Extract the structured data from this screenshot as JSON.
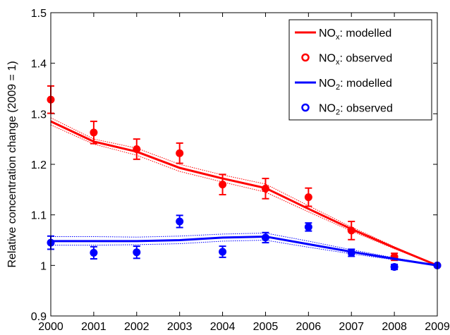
{
  "chart_data": {
    "type": "line",
    "y_label": "Relative concentration change (2009 = 1)",
    "x": [
      2000,
      2001,
      2002,
      2003,
      2004,
      2005,
      2006,
      2007,
      2008,
      2009
    ],
    "xlim": [
      2000,
      2009
    ],
    "xticks": [
      2000,
      2001,
      2002,
      2003,
      2004,
      2005,
      2006,
      2007,
      2008,
      2009
    ],
    "ylim": [
      0.9,
      1.5
    ],
    "yticks": [
      0.9,
      1,
      1.1,
      1.2,
      1.3,
      1.4,
      1.5
    ],
    "legend": "upper right",
    "series": [
      {
        "name": [
          "NO",
          "x",
          ": modelled"
        ],
        "color": "#ff0000",
        "style": "line",
        "values": [
          1.285,
          1.245,
          1.225,
          1.193,
          1.172,
          1.153,
          1.112,
          1.072,
          1.035,
          1.0
        ],
        "upper": [
          1.292,
          1.25,
          1.232,
          1.2,
          1.179,
          1.161,
          1.118,
          1.076,
          1.037,
          1.0
        ],
        "lower": [
          1.278,
          1.24,
          1.218,
          1.186,
          1.165,
          1.145,
          1.106,
          1.068,
          1.033,
          1.0
        ]
      },
      {
        "name": [
          "NO",
          "x",
          ": observed"
        ],
        "color": "#ff0000",
        "style": "points",
        "values": [
          1.328,
          1.263,
          1.23,
          1.222,
          1.16,
          1.152,
          1.135,
          1.069,
          1.017,
          1.0
        ],
        "errors": [
          0.027,
          0.022,
          0.02,
          0.02,
          0.02,
          0.02,
          0.018,
          0.018,
          0.007,
          0
        ]
      },
      {
        "name": [
          "NO",
          "2",
          ": modelled"
        ],
        "color": "#0000ff",
        "style": "line",
        "values": [
          1.048,
          1.048,
          1.048,
          1.05,
          1.055,
          1.057,
          1.042,
          1.027,
          1.013,
          1.0
        ],
        "upper": [
          1.057,
          1.057,
          1.056,
          1.058,
          1.062,
          1.064,
          1.048,
          1.031,
          1.015,
          1.0
        ],
        "lower": [
          1.04,
          1.04,
          1.041,
          1.043,
          1.048,
          1.05,
          1.036,
          1.023,
          1.011,
          1.0
        ]
      },
      {
        "name": [
          "NO",
          "2",
          ": observed"
        ],
        "color": "#0000ff",
        "style": "points",
        "values": [
          1.045,
          1.025,
          1.026,
          1.087,
          1.027,
          1.055,
          1.076,
          1.025,
          0.997,
          1.0
        ],
        "errors": [
          0.013,
          0.012,
          0.012,
          0.012,
          0.011,
          0.01,
          0.008,
          0.007,
          0.005,
          0
        ]
      }
    ]
  }
}
